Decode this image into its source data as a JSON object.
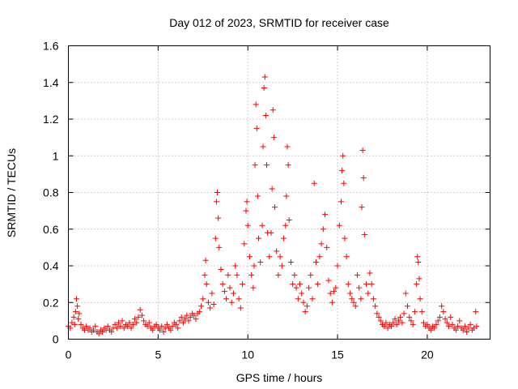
{
  "chart_data": {
    "type": "scatter",
    "title": "Day 012 of 2023, SRMTID for receiver case",
    "xlabel": "GPS time / hours",
    "ylabel": "SRMTID / TECUs",
    "xlim": [
      0,
      23.5
    ],
    "ylim": [
      0,
      1.6
    ],
    "xticks": [
      0,
      5,
      10,
      15,
      20
    ],
    "xtick_labels": [
      "0",
      "5",
      "10",
      "15",
      "20"
    ],
    "yticks": [
      0,
      0.2,
      0.4,
      0.6,
      0.8,
      1.0,
      1.2,
      1.4,
      1.6
    ],
    "ytick_labels": [
      "0",
      "0.2",
      "0.4",
      "0.6",
      "0.8",
      "1",
      "1.2",
      "1.4",
      "1.6"
    ],
    "grid": true,
    "marker": "+",
    "color": "#ff0000",
    "series": [
      {
        "name": "SRMTID",
        "points": [
          [
            0.0,
            0.07
          ],
          [
            0.1,
            0.06
          ],
          [
            0.2,
            0.09
          ],
          [
            0.3,
            0.12
          ],
          [
            0.35,
            0.08
          ],
          [
            0.4,
            0.15
          ],
          [
            0.45,
            0.22
          ],
          [
            0.5,
            0.18
          ],
          [
            0.55,
            0.11
          ],
          [
            0.6,
            0.14
          ],
          [
            0.7,
            0.08
          ],
          [
            0.8,
            0.06
          ],
          [
            0.9,
            0.05
          ],
          [
            1.0,
            0.07
          ],
          [
            1.1,
            0.05
          ],
          [
            1.2,
            0.06
          ],
          [
            1.3,
            0.04
          ],
          [
            1.4,
            0.05
          ],
          [
            1.5,
            0.07
          ],
          [
            1.6,
            0.04
          ],
          [
            1.7,
            0.03
          ],
          [
            1.8,
            0.05
          ],
          [
            1.9,
            0.04
          ],
          [
            2.0,
            0.06
          ],
          [
            2.1,
            0.05
          ],
          [
            2.2,
            0.07
          ],
          [
            2.3,
            0.05
          ],
          [
            2.4,
            0.04
          ],
          [
            2.5,
            0.06
          ],
          [
            2.6,
            0.08
          ],
          [
            2.7,
            0.06
          ],
          [
            2.8,
            0.09
          ],
          [
            2.9,
            0.07
          ],
          [
            3.0,
            0.1
          ],
          [
            3.1,
            0.06
          ],
          [
            3.2,
            0.08
          ],
          [
            3.3,
            0.07
          ],
          [
            3.4,
            0.09
          ],
          [
            3.5,
            0.06
          ],
          [
            3.6,
            0.08
          ],
          [
            3.7,
            0.11
          ],
          [
            3.8,
            0.09
          ],
          [
            3.9,
            0.12
          ],
          [
            4.0,
            0.16
          ],
          [
            4.1,
            0.13
          ],
          [
            4.2,
            0.1
          ],
          [
            4.3,
            0.08
          ],
          [
            4.4,
            0.07
          ],
          [
            4.5,
            0.09
          ],
          [
            4.6,
            0.06
          ],
          [
            4.7,
            0.05
          ],
          [
            4.8,
            0.07
          ],
          [
            4.9,
            0.08
          ],
          [
            5.0,
            0.06
          ],
          [
            5.1,
            0.05
          ],
          [
            5.2,
            0.07
          ],
          [
            5.3,
            0.04
          ],
          [
            5.4,
            0.06
          ],
          [
            5.5,
            0.08
          ],
          [
            5.6,
            0.06
          ],
          [
            5.7,
            0.05
          ],
          [
            5.8,
            0.07
          ],
          [
            5.9,
            0.09
          ],
          [
            6.0,
            0.08
          ],
          [
            6.1,
            0.06
          ],
          [
            6.2,
            0.1
          ],
          [
            6.3,
            0.12
          ],
          [
            6.4,
            0.09
          ],
          [
            6.5,
            0.11
          ],
          [
            6.6,
            0.13
          ],
          [
            6.7,
            0.1
          ],
          [
            6.8,
            0.12
          ],
          [
            6.9,
            0.14
          ],
          [
            7.0,
            0.13
          ],
          [
            7.1,
            0.11
          ],
          [
            7.2,
            0.14
          ],
          [
            7.3,
            0.15
          ],
          [
            7.4,
            0.18
          ],
          [
            7.5,
            0.22
          ],
          [
            7.6,
            0.35
          ],
          [
            7.65,
            0.43
          ],
          [
            7.7,
            0.3
          ],
          [
            7.8,
            0.2
          ],
          [
            7.9,
            0.17
          ],
          [
            8.0,
            0.25
          ],
          [
            8.1,
            0.19
          ],
          [
            8.2,
            0.55
          ],
          [
            8.25,
            0.75
          ],
          [
            8.3,
            0.8
          ],
          [
            8.35,
            0.66
          ],
          [
            8.4,
            0.5
          ],
          [
            8.5,
            0.38
          ],
          [
            8.6,
            0.3
          ],
          [
            8.7,
            0.26
          ],
          [
            8.8,
            0.22
          ],
          [
            8.9,
            0.35
          ],
          [
            9.0,
            0.28
          ],
          [
            9.1,
            0.2
          ],
          [
            9.2,
            0.25
          ],
          [
            9.3,
            0.4
          ],
          [
            9.4,
            0.35
          ],
          [
            9.5,
            0.22
          ],
          [
            9.6,
            0.17
          ],
          [
            9.7,
            0.3
          ],
          [
            9.8,
            0.52
          ],
          [
            9.9,
            0.7
          ],
          [
            9.95,
            0.75
          ],
          [
            10.0,
            0.62
          ],
          [
            10.1,
            0.45
          ],
          [
            10.2,
            0.35
          ],
          [
            10.3,
            0.28
          ],
          [
            10.35,
            0.4
          ],
          [
            10.4,
            0.95
          ],
          [
            10.45,
            1.28
          ],
          [
            10.5,
            1.15
          ],
          [
            10.55,
            0.78
          ],
          [
            10.6,
            0.55
          ],
          [
            10.7,
            0.42
          ],
          [
            10.8,
            0.62
          ],
          [
            10.85,
            1.05
          ],
          [
            10.9,
            1.37
          ],
          [
            10.95,
            1.43
          ],
          [
            11.0,
            1.22
          ],
          [
            11.05,
            0.95
          ],
          [
            11.1,
            0.58
          ],
          [
            11.2,
            0.45
          ],
          [
            11.3,
            0.58
          ],
          [
            11.35,
            0.82
          ],
          [
            11.4,
            1.25
          ],
          [
            11.45,
            1.1
          ],
          [
            11.5,
            0.72
          ],
          [
            11.6,
            0.48
          ],
          [
            11.7,
            0.35
          ],
          [
            11.8,
            0.45
          ],
          [
            11.9,
            0.4
          ],
          [
            12.0,
            0.55
          ],
          [
            12.1,
            0.62
          ],
          [
            12.15,
            0.78
          ],
          [
            12.2,
            1.05
          ],
          [
            12.25,
            0.95
          ],
          [
            12.3,
            0.65
          ],
          [
            12.4,
            0.42
          ],
          [
            12.5,
            0.3
          ],
          [
            12.6,
            0.35
          ],
          [
            12.7,
            0.28
          ],
          [
            12.8,
            0.22
          ],
          [
            12.9,
            0.3
          ],
          [
            13.0,
            0.25
          ],
          [
            13.1,
            0.2
          ],
          [
            13.2,
            0.15
          ],
          [
            13.3,
            0.18
          ],
          [
            13.4,
            0.28
          ],
          [
            13.5,
            0.35
          ],
          [
            13.6,
            0.22
          ],
          [
            13.7,
            0.85
          ],
          [
            13.8,
            0.42
          ],
          [
            13.9,
            0.3
          ],
          [
            14.0,
            0.45
          ],
          [
            14.1,
            0.52
          ],
          [
            14.2,
            0.6
          ],
          [
            14.3,
            0.68
          ],
          [
            14.4,
            0.5
          ],
          [
            14.5,
            0.32
          ],
          [
            14.6,
            0.25
          ],
          [
            14.7,
            0.2
          ],
          [
            14.8,
            0.26
          ],
          [
            14.9,
            0.28
          ],
          [
            15.0,
            0.4
          ],
          [
            15.1,
            0.62
          ],
          [
            15.2,
            0.75
          ],
          [
            15.25,
            0.92
          ],
          [
            15.3,
            1.0
          ],
          [
            15.35,
            0.85
          ],
          [
            15.4,
            0.55
          ],
          [
            15.5,
            0.45
          ],
          [
            15.6,
            0.3
          ],
          [
            15.7,
            0.25
          ],
          [
            15.8,
            0.22
          ],
          [
            15.9,
            0.2
          ],
          [
            16.0,
            0.18
          ],
          [
            16.1,
            0.35
          ],
          [
            16.2,
            0.28
          ],
          [
            16.3,
            0.22
          ],
          [
            16.35,
            0.72
          ],
          [
            16.4,
            1.03
          ],
          [
            16.45,
            0.88
          ],
          [
            16.5,
            0.57
          ],
          [
            16.6,
            0.3
          ],
          [
            16.7,
            0.25
          ],
          [
            16.8,
            0.36
          ],
          [
            16.9,
            0.3
          ],
          [
            17.0,
            0.22
          ],
          [
            17.1,
            0.18
          ],
          [
            17.2,
            0.14
          ],
          [
            17.3,
            0.12
          ],
          [
            17.4,
            0.1
          ],
          [
            17.5,
            0.08
          ],
          [
            17.6,
            0.07
          ],
          [
            17.7,
            0.09
          ],
          [
            17.8,
            0.06
          ],
          [
            17.9,
            0.08
          ],
          [
            18.0,
            0.07
          ],
          [
            18.1,
            0.09
          ],
          [
            18.2,
            0.11
          ],
          [
            18.3,
            0.08
          ],
          [
            18.4,
            0.1
          ],
          [
            18.5,
            0.12
          ],
          [
            18.6,
            0.09
          ],
          [
            18.7,
            0.14
          ],
          [
            18.8,
            0.25
          ],
          [
            18.9,
            0.18
          ],
          [
            19.0,
            0.12
          ],
          [
            19.1,
            0.1
          ],
          [
            19.2,
            0.08
          ],
          [
            19.3,
            0.15
          ],
          [
            19.4,
            0.3
          ],
          [
            19.45,
            0.45
          ],
          [
            19.5,
            0.42
          ],
          [
            19.55,
            0.33
          ],
          [
            19.6,
            0.22
          ],
          [
            19.7,
            0.15
          ],
          [
            19.8,
            0.09
          ],
          [
            19.9,
            0.07
          ],
          [
            20.0,
            0.08
          ],
          [
            20.1,
            0.06
          ],
          [
            20.2,
            0.05
          ],
          [
            20.3,
            0.07
          ],
          [
            20.4,
            0.06
          ],
          [
            20.5,
            0.08
          ],
          [
            20.6,
            0.1
          ],
          [
            20.7,
            0.12
          ],
          [
            20.8,
            0.18
          ],
          [
            20.9,
            0.15
          ],
          [
            21.0,
            0.11
          ],
          [
            21.1,
            0.09
          ],
          [
            21.2,
            0.07
          ],
          [
            21.3,
            0.12
          ],
          [
            21.4,
            0.08
          ],
          [
            21.5,
            0.06
          ],
          [
            21.6,
            0.05
          ],
          [
            21.7,
            0.07
          ],
          [
            21.8,
            0.1
          ],
          [
            21.9,
            0.06
          ],
          [
            22.0,
            0.05
          ],
          [
            22.1,
            0.07
          ],
          [
            22.2,
            0.04
          ],
          [
            22.3,
            0.06
          ],
          [
            22.4,
            0.08
          ],
          [
            22.5,
            0.05
          ],
          [
            22.6,
            0.06
          ],
          [
            22.7,
            0.15
          ],
          [
            22.75,
            0.07
          ]
        ]
      }
    ]
  }
}
